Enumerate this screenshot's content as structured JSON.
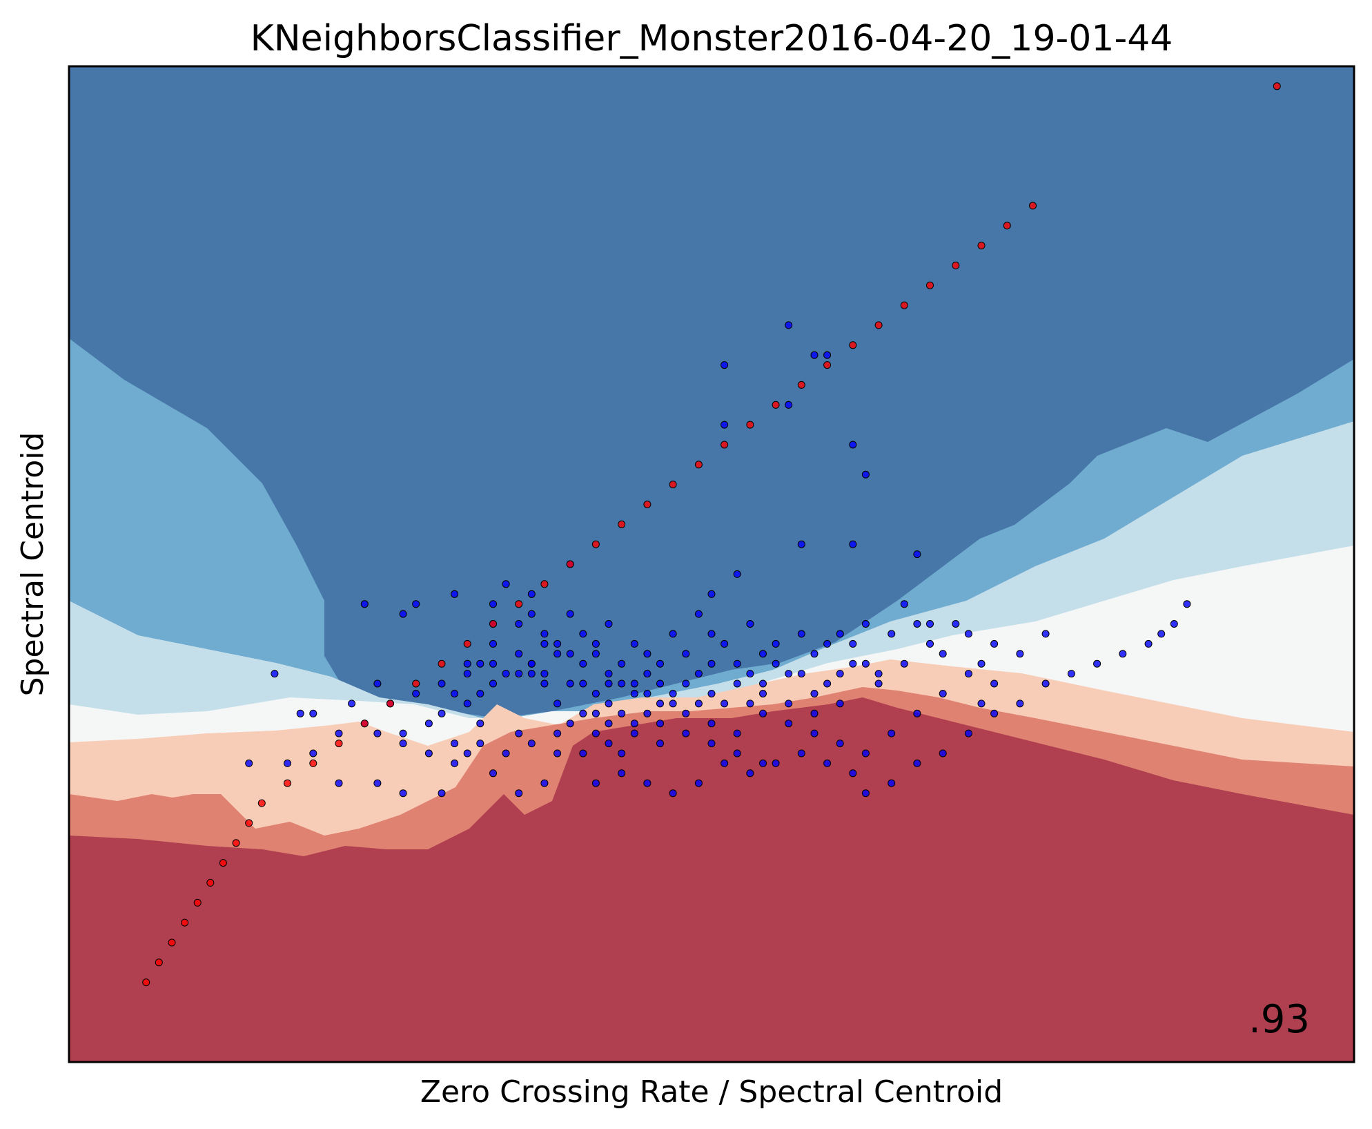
{
  "chart_data": {
    "type": "scatter",
    "title": "KNeighborsClassifier_Monster2016-04-20_19-01-44",
    "xlabel": "Zero Crossing Rate / Spectral Centroid",
    "ylabel": "Spectral Centroid",
    "score": ".93",
    "xlim": [
      0,
      1
    ],
    "ylim": [
      0,
      1
    ],
    "ticks": "none",
    "grid": false,
    "legend": "none",
    "colors": {
      "class_a": "#ff0000",
      "class_b": "#0000ff",
      "region_strong_blue": "#4777a8",
      "region_mid_blue": "#70abd0",
      "region_light_blue": "#c4dfea",
      "region_neutral": "#f5f6f6",
      "region_light_red": "#f8cdb8",
      "region_mid_red": "#df8272",
      "region_strong_red": "#b04050"
    },
    "series": [
      {
        "color": "#0000ff",
        "points": [
          [
            0.56,
            0.74
          ],
          [
            0.56,
            0.66
          ],
          [
            0.58,
            0.71
          ],
          [
            0.59,
            0.71
          ],
          [
            0.51,
            0.64
          ],
          [
            0.57,
            0.52
          ],
          [
            0.61,
            0.62
          ],
          [
            0.62,
            0.59
          ],
          [
            0.61,
            0.52
          ],
          [
            0.66,
            0.51
          ],
          [
            0.51,
            0.7
          ],
          [
            0.26,
            0.45
          ],
          [
            0.39,
            0.5
          ],
          [
            0.42,
            0.44
          ],
          [
            0.44,
            0.42
          ],
          [
            0.4,
            0.43
          ],
          [
            0.37,
            0.38
          ],
          [
            0.33,
            0.44
          ],
          [
            0.33,
            0.42
          ],
          [
            0.42,
            0.38
          ],
          [
            0.5,
            0.47
          ],
          [
            0.52,
            0.49
          ],
          [
            0.36,
            0.47
          ],
          [
            0.38,
            0.41
          ],
          [
            0.39,
            0.45
          ],
          [
            0.41,
            0.42
          ],
          [
            0.42,
            0.39
          ],
          [
            0.23,
            0.46
          ],
          [
            0.27,
            0.46
          ],
          [
            0.3,
            0.47
          ],
          [
            0.31,
            0.4
          ],
          [
            0.32,
            0.4
          ],
          [
            0.33,
            0.46
          ],
          [
            0.34,
            0.48
          ],
          [
            0.35,
            0.44
          ],
          [
            0.36,
            0.45
          ],
          [
            0.37,
            0.43
          ],
          [
            0.38,
            0.42
          ],
          [
            0.39,
            0.41
          ],
          [
            0.4,
            0.38
          ],
          [
            0.41,
            0.37
          ],
          [
            0.42,
            0.36
          ],
          [
            0.43,
            0.4
          ],
          [
            0.44,
            0.38
          ],
          [
            0.45,
            0.41
          ],
          [
            0.46,
            0.4
          ],
          [
            0.47,
            0.43
          ],
          [
            0.48,
            0.41
          ],
          [
            0.49,
            0.45
          ],
          [
            0.5,
            0.43
          ],
          [
            0.51,
            0.42
          ],
          [
            0.52,
            0.4
          ],
          [
            0.53,
            0.44
          ],
          [
            0.54,
            0.41
          ],
          [
            0.55,
            0.42
          ],
          [
            0.56,
            0.39
          ],
          [
            0.57,
            0.43
          ],
          [
            0.58,
            0.41
          ],
          [
            0.59,
            0.42
          ],
          [
            0.6,
            0.43
          ],
          [
            0.61,
            0.42
          ],
          [
            0.62,
            0.44
          ],
          [
            0.63,
            0.39
          ],
          [
            0.64,
            0.43
          ],
          [
            0.65,
            0.46
          ],
          [
            0.66,
            0.44
          ],
          [
            0.67,
            0.44
          ],
          [
            0.68,
            0.41
          ],
          [
            0.7,
            0.43
          ],
          [
            0.71,
            0.36
          ],
          [
            0.72,
            0.42
          ],
          [
            0.37,
            0.42
          ],
          [
            0.39,
            0.38
          ],
          [
            0.4,
            0.4
          ],
          [
            0.41,
            0.41
          ],
          [
            0.43,
            0.38
          ],
          [
            0.44,
            0.37
          ],
          [
            0.45,
            0.39
          ],
          [
            0.46,
            0.36
          ],
          [
            0.47,
            0.37
          ],
          [
            0.48,
            0.38
          ],
          [
            0.49,
            0.39
          ],
          [
            0.5,
            0.4
          ],
          [
            0.52,
            0.38
          ],
          [
            0.53,
            0.36
          ],
          [
            0.54,
            0.38
          ],
          [
            0.55,
            0.4
          ],
          [
            0.38,
            0.36
          ],
          [
            0.41,
            0.35
          ],
          [
            0.43,
            0.35
          ],
          [
            0.45,
            0.35
          ],
          [
            0.46,
            0.38
          ],
          [
            0.47,
            0.36
          ],
          [
            0.48,
            0.35
          ],
          [
            0.49,
            0.36
          ],
          [
            0.5,
            0.37
          ],
          [
            0.51,
            0.36
          ],
          [
            0.53,
            0.39
          ],
          [
            0.54,
            0.37
          ],
          [
            0.57,
            0.39
          ],
          [
            0.58,
            0.37
          ],
          [
            0.59,
            0.38
          ],
          [
            0.6,
            0.39
          ],
          [
            0.61,
            0.4
          ],
          [
            0.62,
            0.4
          ],
          [
            0.31,
            0.36
          ],
          [
            0.32,
            0.37
          ],
          [
            0.34,
            0.39
          ],
          [
            0.35,
            0.39
          ],
          [
            0.36,
            0.4
          ],
          [
            0.24,
            0.38
          ],
          [
            0.16,
            0.39
          ],
          [
            0.18,
            0.35
          ],
          [
            0.24,
            0.33
          ],
          [
            0.26,
            0.33
          ],
          [
            0.28,
            0.34
          ],
          [
            0.29,
            0.35
          ],
          [
            0.3,
            0.37
          ],
          [
            0.42,
            0.32
          ],
          [
            0.36,
            0.4
          ],
          [
            0.37,
            0.39
          ],
          [
            0.36,
            0.39
          ],
          [
            0.33,
            0.38
          ],
          [
            0.3,
            0.32
          ],
          [
            0.31,
            0.31
          ],
          [
            0.38,
            0.31
          ],
          [
            0.4,
            0.31
          ],
          [
            0.43,
            0.31
          ],
          [
            0.45,
            0.37
          ],
          [
            0.35,
            0.33
          ],
          [
            0.32,
            0.34
          ],
          [
            0.44,
            0.34
          ],
          [
            0.46,
            0.32
          ],
          [
            0.5,
            0.34
          ],
          [
            0.52,
            0.33
          ],
          [
            0.54,
            0.35
          ],
          [
            0.56,
            0.36
          ],
          [
            0.58,
            0.35
          ],
          [
            0.6,
            0.36
          ],
          [
            0.63,
            0.38
          ],
          [
            0.65,
            0.4
          ],
          [
            0.67,
            0.42
          ],
          [
            0.69,
            0.44
          ],
          [
            0.71,
            0.4
          ],
          [
            0.17,
            0.3
          ],
          [
            0.19,
            0.31
          ],
          [
            0.21,
            0.33
          ],
          [
            0.23,
            0.34
          ],
          [
            0.25,
            0.36
          ],
          [
            0.27,
            0.37
          ],
          [
            0.29,
            0.38
          ],
          [
            0.31,
            0.39
          ],
          [
            0.33,
            0.4
          ],
          [
            0.35,
            0.41
          ],
          [
            0.39,
            0.34
          ],
          [
            0.41,
            0.33
          ],
          [
            0.26,
            0.32
          ],
          [
            0.28,
            0.31
          ],
          [
            0.3,
            0.3
          ],
          [
            0.32,
            0.32
          ],
          [
            0.34,
            0.31
          ],
          [
            0.36,
            0.32
          ],
          [
            0.38,
            0.33
          ],
          [
            0.4,
            0.35
          ],
          [
            0.42,
            0.34
          ],
          [
            0.44,
            0.33
          ],
          [
            0.46,
            0.34
          ],
          [
            0.48,
            0.33
          ],
          [
            0.5,
            0.32
          ],
          [
            0.52,
            0.31
          ],
          [
            0.54,
            0.3
          ],
          [
            0.56,
            0.34
          ],
          [
            0.58,
            0.33
          ],
          [
            0.6,
            0.32
          ],
          [
            0.62,
            0.31
          ],
          [
            0.64,
            0.33
          ],
          [
            0.66,
            0.35
          ],
          [
            0.68,
            0.37
          ],
          [
            0.7,
            0.39
          ],
          [
            0.72,
            0.38
          ],
          [
            0.74,
            0.41
          ],
          [
            0.76,
            0.43
          ],
          [
            0.14,
            0.3
          ],
          [
            0.19,
            0.35
          ],
          [
            0.21,
            0.28
          ],
          [
            0.22,
            0.36
          ],
          [
            0.24,
            0.28
          ],
          [
            0.26,
            0.27
          ],
          [
            0.29,
            0.27
          ],
          [
            0.33,
            0.29
          ],
          [
            0.35,
            0.27
          ],
          [
            0.37,
            0.28
          ],
          [
            0.41,
            0.28
          ],
          [
            0.43,
            0.29
          ],
          [
            0.45,
            0.28
          ],
          [
            0.47,
            0.27
          ],
          [
            0.49,
            0.28
          ],
          [
            0.51,
            0.3
          ],
          [
            0.53,
            0.29
          ],
          [
            0.55,
            0.3
          ],
          [
            0.57,
            0.31
          ],
          [
            0.59,
            0.3
          ],
          [
            0.61,
            0.29
          ],
          [
            0.62,
            0.27
          ],
          [
            0.64,
            0.28
          ],
          [
            0.66,
            0.3
          ],
          [
            0.68,
            0.31
          ],
          [
            0.7,
            0.33
          ],
          [
            0.72,
            0.35
          ],
          [
            0.74,
            0.36
          ],
          [
            0.76,
            0.38
          ],
          [
            0.78,
            0.39
          ],
          [
            0.8,
            0.4
          ],
          [
            0.82,
            0.41
          ],
          [
            0.84,
            0.42
          ],
          [
            0.85,
            0.43
          ],
          [
            0.86,
            0.44
          ],
          [
            0.87,
            0.46
          ]
        ]
      },
      {
        "color": "#ff0000",
        "points": [
          [
            0.94,
            0.98
          ],
          [
            0.06,
            0.08
          ],
          [
            0.07,
            0.1
          ],
          [
            0.08,
            0.12
          ],
          [
            0.09,
            0.14
          ],
          [
            0.1,
            0.16
          ],
          [
            0.11,
            0.18
          ],
          [
            0.12,
            0.2
          ],
          [
            0.13,
            0.22
          ],
          [
            0.14,
            0.24
          ],
          [
            0.15,
            0.26
          ],
          [
            0.17,
            0.28
          ],
          [
            0.19,
            0.3
          ],
          [
            0.21,
            0.32
          ],
          [
            0.23,
            0.34
          ],
          [
            0.25,
            0.36
          ],
          [
            0.27,
            0.38
          ],
          [
            0.29,
            0.4
          ],
          [
            0.31,
            0.42
          ],
          [
            0.33,
            0.44
          ],
          [
            0.35,
            0.46
          ],
          [
            0.37,
            0.48
          ],
          [
            0.39,
            0.5
          ],
          [
            0.41,
            0.52
          ],
          [
            0.43,
            0.54
          ],
          [
            0.45,
            0.56
          ],
          [
            0.47,
            0.58
          ],
          [
            0.49,
            0.6
          ],
          [
            0.51,
            0.62
          ],
          [
            0.53,
            0.64
          ],
          [
            0.55,
            0.66
          ],
          [
            0.57,
            0.68
          ],
          [
            0.59,
            0.7
          ],
          [
            0.61,
            0.72
          ],
          [
            0.63,
            0.74
          ],
          [
            0.65,
            0.76
          ],
          [
            0.67,
            0.78
          ],
          [
            0.69,
            0.8
          ],
          [
            0.71,
            0.82
          ],
          [
            0.73,
            0.84
          ],
          [
            0.75,
            0.86
          ]
        ]
      }
    ]
  }
}
